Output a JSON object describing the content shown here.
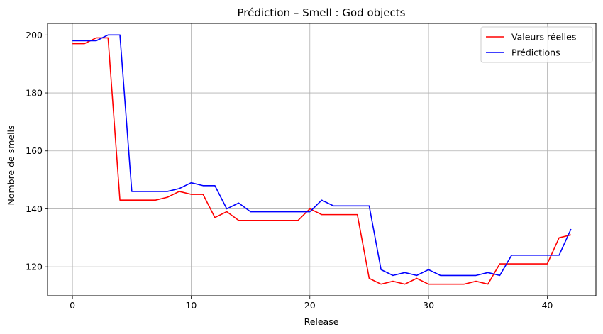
{
  "chart_data": {
    "type": "line",
    "title": "Prédiction – Smell : God objects",
    "xlabel": "Release",
    "ylabel": "Nombre de smells",
    "xlim": [
      -2.1,
      44.1
    ],
    "ylim": [
      110,
      204
    ],
    "xticks": [
      0,
      10,
      20,
      30,
      40
    ],
    "yticks": [
      120,
      140,
      160,
      180,
      200
    ],
    "grid": true,
    "legend_position": "top-right",
    "x": [
      0,
      1,
      2,
      3,
      4,
      5,
      6,
      7,
      8,
      9,
      10,
      11,
      12,
      13,
      14,
      15,
      16,
      17,
      18,
      19,
      20,
      21,
      22,
      23,
      24,
      25,
      26,
      27,
      28,
      29,
      30,
      31,
      32,
      33,
      34,
      35,
      36,
      37,
      38,
      39,
      40,
      41,
      42
    ],
    "series": [
      {
        "name": "Valeurs réelles",
        "color": "#ff0000",
        "values": [
          197,
          197,
          199,
          199,
          143,
          143,
          143,
          143,
          144,
          146,
          145,
          145,
          137,
          139,
          136,
          136,
          136,
          136,
          136,
          136,
          140,
          138,
          138,
          138,
          138,
          116,
          114,
          115,
          114,
          116,
          114,
          114,
          114,
          114,
          115,
          114,
          121,
          121,
          121,
          121,
          121,
          130,
          131
        ]
      },
      {
        "name": "Prédictions",
        "color": "#0000ff",
        "values": [
          198,
          198,
          198,
          200,
          200,
          146,
          146,
          146,
          146,
          147,
          149,
          148,
          148,
          140,
          142,
          139,
          139,
          139,
          139,
          139,
          139,
          143,
          141,
          141,
          141,
          141,
          119,
          117,
          118,
          117,
          119,
          117,
          117,
          117,
          117,
          118,
          117,
          124,
          124,
          124,
          124,
          124,
          133
        ]
      }
    ]
  }
}
